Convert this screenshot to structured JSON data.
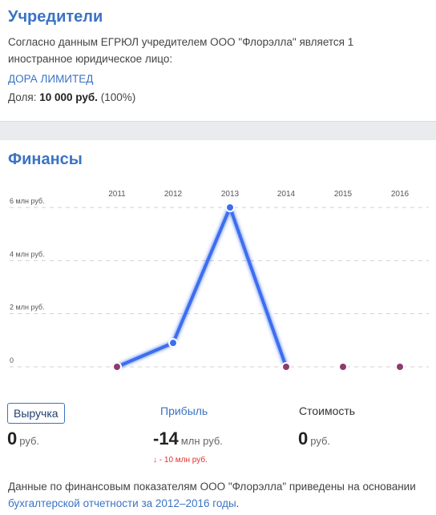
{
  "founders": {
    "title": "Учредители",
    "description": "Согласно данным ЕГРЮЛ учредителем ООО \"Флорэлла\" является 1 иностранное юридическое лицо:",
    "founder_name": "ДОРА ЛИМИТЕД",
    "share_label": "Доля:",
    "share_value": "10 000 руб.",
    "share_percent": "(100%)"
  },
  "finance": {
    "title": "Финансы",
    "metrics": {
      "revenue_label": "Выручка",
      "profit_label": "Прибыль",
      "cost_label": "Стоимость"
    },
    "values": {
      "revenue": "0",
      "revenue_unit": "руб.",
      "profit": "-14",
      "profit_unit": "млн руб.",
      "cost": "0",
      "cost_unit": "руб."
    },
    "profit_delta": "↓ - 10 млн руб.",
    "note_prefix": "Данные по финансовым показателям ООО \"Флорэлла\" приведены на основании ",
    "note_link": "бухгалтерской отчетности за 2012–2016 годы",
    "note_suffix": "."
  },
  "chart_data": {
    "type": "line",
    "x": [
      "2011",
      "2012",
      "2013",
      "2014",
      "2015",
      "2016"
    ],
    "y_ticks": [
      "0",
      "2 млн руб.",
      "4 млн руб.",
      "6 млн руб."
    ],
    "ylim": [
      0,
      6
    ],
    "series": [
      {
        "values": [
          0,
          0.9,
          6.0,
          0,
          0,
          0
        ]
      }
    ],
    "colors": {
      "positive": "#3d6ef0",
      "zero": "#8e3b6e",
      "grid": "#d0d0d0"
    }
  }
}
